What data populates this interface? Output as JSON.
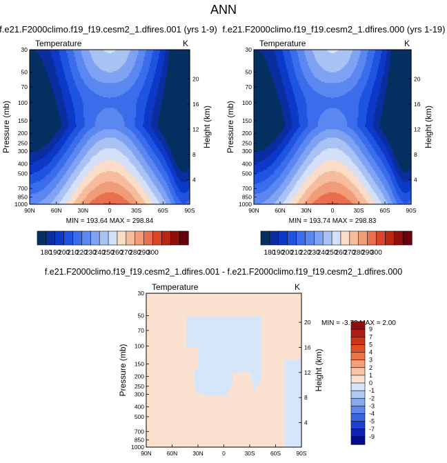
{
  "page_title": "ANN",
  "chart_data": [
    {
      "type": "contour",
      "title": "f.e21.F2000climo.f19_f19.cesm2_1.dfires.001 (yrs 1-9)",
      "left_label": "Temperature",
      "right_label": "K",
      "xlabel": "",
      "ylabel": "Pressure (mb)",
      "ylabel_right": "Height (km)",
      "xticks": [
        "90N",
        "60N",
        "30N",
        "0",
        "30S",
        "60S",
        "90S"
      ],
      "yticks": [
        "30",
        "50",
        "70",
        "100",
        "150",
        "200",
        "250",
        "300",
        "400",
        "500",
        "700",
        "850",
        "1000"
      ],
      "height_ticks": [
        "20",
        "16",
        "12",
        "8",
        "4"
      ],
      "stats": "MIN = 193.64   MAX = 298.84",
      "min": 193.64,
      "max": 298.84
    },
    {
      "type": "contour",
      "title": "f.e21.F2000climo.f19_f19.cesm2_1.dfires.000 (yrs 1-19)",
      "left_label": "Temperature",
      "right_label": "K",
      "xlabel": "",
      "ylabel": "Pressure (mb)",
      "ylabel_right": "Height (km)",
      "xticks": [
        "90N",
        "60N",
        "30N",
        "0",
        "30S",
        "60S",
        "90S"
      ],
      "yticks": [
        "30",
        "50",
        "70",
        "100",
        "150",
        "200",
        "250",
        "300",
        "400",
        "500",
        "700",
        "850",
        "1000"
      ],
      "height_ticks": [
        "20",
        "16",
        "12",
        "8",
        "4"
      ],
      "stats": "MIN = 193.74   MAX = 298.83",
      "min": 193.74,
      "max": 298.83
    },
    {
      "type": "contour",
      "title": "f.e21.F2000climo.f19_f19.cesm2_1.dfires.001 - f.e21.F2000climo.f19_f19.cesm2_1.dfires.000",
      "left_label": "Temperature",
      "right_label": "K",
      "xlabel": "",
      "ylabel": "Pressure (mb)",
      "ylabel_right": "Height (km)",
      "xticks": [
        "90N",
        "60N",
        "30N",
        "0",
        "30S",
        "60S",
        "90S"
      ],
      "yticks": [
        "30",
        "50",
        "70",
        "100",
        "150",
        "200",
        "250",
        "300",
        "400",
        "500",
        "700",
        "850",
        "1000"
      ],
      "height_ticks": [
        "20",
        "16",
        "12",
        "8",
        "4"
      ],
      "stats": "MIN =  -3.73   MAX =   2.00",
      "min": -3.73,
      "max": 2.0
    }
  ],
  "temperature_colorbar": {
    "labels": [
      "180",
      "190",
      "200",
      "210",
      "220",
      "230",
      "240",
      "250",
      "260",
      "270",
      "280",
      "290",
      "300"
    ],
    "colors": [
      "#053061",
      "#0a2ea0",
      "#0d39c8",
      "#1f54e0",
      "#3a6cec",
      "#5a88f0",
      "#7fa3f2",
      "#a9c2f4",
      "#d3e0f7",
      "#f9ddc8",
      "#f6bd9c",
      "#f19c79",
      "#e86f4f",
      "#d9472a",
      "#bb2513",
      "#901009",
      "#67000d"
    ]
  },
  "difference_colorbar": {
    "labels": [
      "9",
      "7",
      "5",
      "4",
      "3",
      "2",
      "1",
      "0",
      "-1",
      "-2",
      "-3",
      "-4",
      "-5",
      "-7",
      "-9"
    ],
    "colors": [
      "#8d1010",
      "#b01d14",
      "#cc3316",
      "#e04f24",
      "#eb7547",
      "#f29f7a",
      "#f7c3a5",
      "#fbe1d0",
      "#d6e6fa",
      "#afcbf4",
      "#87aaee",
      "#5f88e8",
      "#3b64df",
      "#1e40d2",
      "#0e22b8",
      "#000b91"
    ]
  }
}
